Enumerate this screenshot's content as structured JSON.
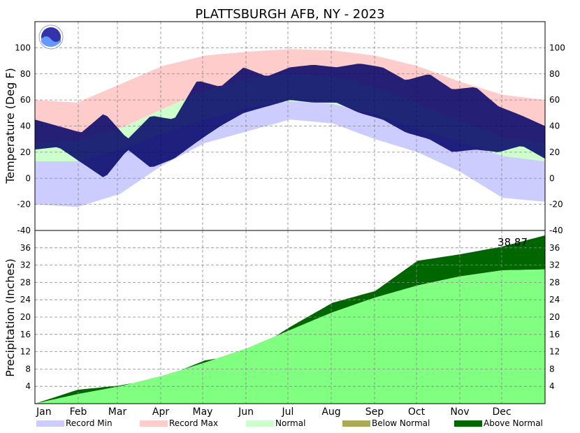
{
  "chart_data": {
    "type": "area",
    "title": "PLATTSBURGH AFB, NY - 2023",
    "months": [
      "Jan",
      "Feb",
      "Mar",
      "Apr",
      "May",
      "Jun",
      "Jul",
      "Aug",
      "Sep",
      "Oct",
      "Nov",
      "Dec"
    ],
    "temperature": {
      "ylabel": "Temperature (Deg F)",
      "ylim": [
        -40,
        120
      ],
      "ticks": [
        "-40",
        "-20",
        "0",
        "20",
        "40",
        "60",
        "80",
        "100"
      ],
      "grid": true,
      "normal_low": [
        13,
        13,
        22,
        34,
        45,
        54,
        59,
        57,
        49,
        38,
        28,
        17,
        13
      ],
      "normal_high": [
        27,
        29,
        38,
        53,
        67,
        76,
        80,
        78,
        70,
        57,
        44,
        31,
        27
      ],
      "record_low": [
        -20,
        -22,
        -12,
        10,
        27,
        36,
        45,
        42,
        30,
        20,
        5,
        -15,
        -18
      ],
      "record_high": [
        60,
        58,
        72,
        86,
        94,
        97,
        99,
        98,
        94,
        86,
        74,
        64,
        60
      ],
      "observed_min": [
        22,
        24,
        12,
        0,
        22,
        8,
        15,
        28,
        40,
        50,
        55,
        60,
        58,
        58,
        50,
        45,
        35,
        30,
        20,
        22,
        20,
        25,
        15
      ],
      "observed_max": [
        45,
        40,
        35,
        50,
        30,
        48,
        45,
        75,
        70,
        85,
        78,
        85,
        87,
        85,
        88,
        85,
        75,
        80,
        68,
        70,
        55,
        48,
        40
      ]
    },
    "precipitation": {
      "ylabel": "Precipitation (Inches)",
      "ylim": [
        0,
        40
      ],
      "ticks": [
        "4",
        "8",
        "12",
        "16",
        "20",
        "24",
        "28",
        "32",
        "36"
      ],
      "grid": true,
      "total_label": "38.87",
      "normal_cumulative": [
        0.0,
        2.2,
        4.0,
        6.4,
        9.5,
        12.8,
        17.0,
        21.1,
        24.5,
        27.3,
        29.4,
        30.8,
        31.0
      ],
      "observed_cumulative": [
        0.0,
        3.2,
        4.2,
        6.0,
        10.0,
        11.5,
        17.7,
        23.3,
        26.0,
        33.0,
        34.5,
        36.3,
        38.87
      ]
    },
    "legend": [
      {
        "label": "Record Min",
        "color": "#ccccff"
      },
      {
        "label": "Record Max",
        "color": "#ffcccc"
      },
      {
        "label": "Normal",
        "color": "#ccffcc"
      },
      {
        "label": "Below Normal",
        "color": "#aaaa55"
      },
      {
        "label": "Above Normal",
        "color": "#006600"
      }
    ],
    "colors": {
      "observed": "#000066",
      "precip_normal": "#80ff80",
      "precip_above": "#006600"
    }
  }
}
